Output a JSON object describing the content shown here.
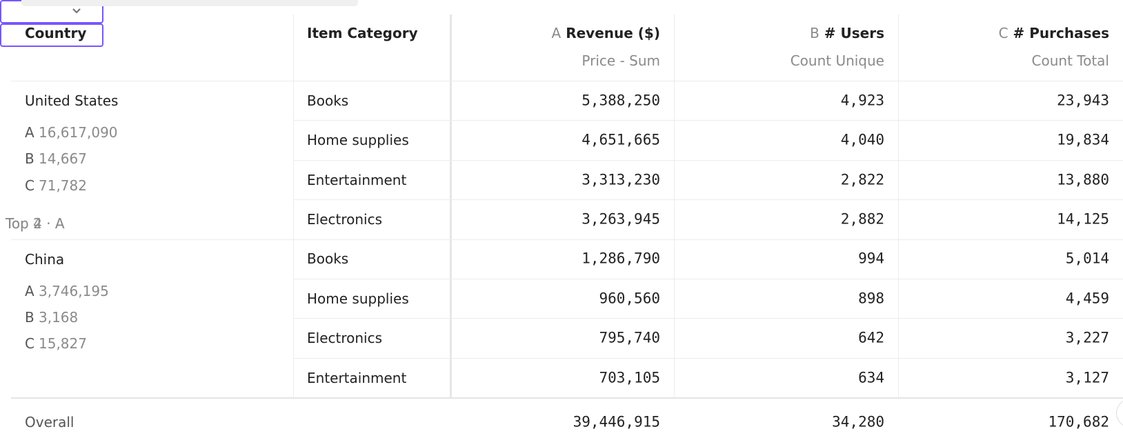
{
  "columns": [
    {
      "title": "Country",
      "control": "Top 2 · A"
    },
    {
      "title": "Item Category",
      "control": "Top 4 · A"
    },
    {
      "letter": "A",
      "title": "Revenue ($)",
      "subtitle": "Price - Sum"
    },
    {
      "letter": "B",
      "title": "# Users",
      "subtitle": "Count Unique"
    },
    {
      "letter": "C",
      "title": "# Purchases",
      "subtitle": "Count Total"
    }
  ],
  "groups": [
    {
      "country": "United States",
      "summary": [
        {
          "letter": "A",
          "value": "16,617,090"
        },
        {
          "letter": "B",
          "value": "14,667"
        },
        {
          "letter": "C",
          "value": "71,782"
        }
      ],
      "rows": [
        [
          "Books",
          "5,388,250",
          "4,923",
          "23,943"
        ],
        [
          "Home supplies",
          "4,651,665",
          "4,040",
          "19,834"
        ],
        [
          "Entertainment",
          "3,313,230",
          "2,822",
          "13,880"
        ],
        [
          "Electronics",
          "3,263,945",
          "2,882",
          "14,125"
        ]
      ]
    },
    {
      "country": "China",
      "summary": [
        {
          "letter": "A",
          "value": "3,746,195"
        },
        {
          "letter": "B",
          "value": "3,168"
        },
        {
          "letter": "C",
          "value": "15,827"
        }
      ],
      "rows": [
        [
          "Books",
          "1,286,790",
          "994",
          "5,014"
        ],
        [
          "Home supplies",
          "960,560",
          "898",
          "4,459"
        ],
        [
          "Electronics",
          "795,740",
          "642",
          "3,227"
        ],
        [
          "Entertainment",
          "703,105",
          "634",
          "3,127"
        ]
      ]
    }
  ],
  "overall": {
    "label": "Overall",
    "values": [
      "39,446,915",
      "34,280",
      "170,682"
    ]
  }
}
